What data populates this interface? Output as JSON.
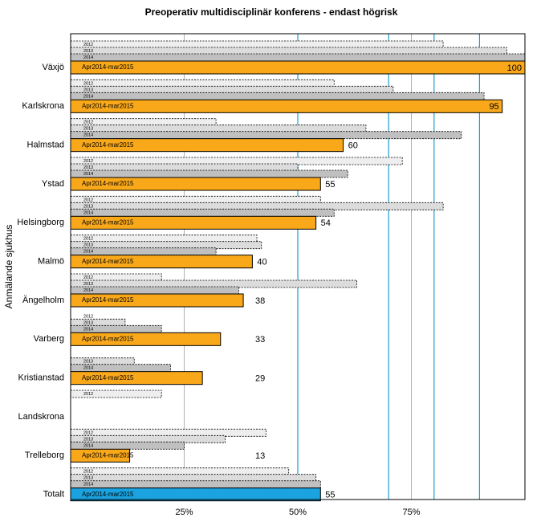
{
  "chart_data": {
    "type": "bar",
    "orientation": "horizontal",
    "title": "Preoperativ multidisciplinär konferens - endast högrisk",
    "y_label": "Anmälande sjukhus",
    "categories": [
      "Växjö",
      "Karlskrona",
      "Halmstad",
      "Ystad",
      "Helsingborg",
      "Malmö",
      "Ängelholm",
      "Varberg",
      "Kristianstad",
      "Landskrona",
      "Trelleborg",
      "Totalt"
    ],
    "series": [
      {
        "name": "2012",
        "color": "#eeeeee",
        "values": [
          82,
          58,
          32,
          73,
          55,
          41,
          20,
          0,
          null,
          20,
          43,
          48
        ]
      },
      {
        "name": "2013",
        "color": "#dcdcdc",
        "values": [
          96,
          71,
          65,
          50,
          82,
          42,
          63,
          12,
          14,
          null,
          34,
          54
        ]
      },
      {
        "name": "2014",
        "color": "#c0c0c0",
        "values": [
          100,
          91,
          86,
          61,
          58,
          32,
          37,
          20,
          22,
          null,
          25,
          55
        ]
      },
      {
        "name": "Apr2014-mar2015",
        "color": "#f9a81a",
        "colors": [
          "#f9a81a",
          "#f9a81a",
          "#f9a81a",
          "#f9a81a",
          "#f9a81a",
          "#f9a81a",
          "#f9a81a",
          "#f9a81a",
          "#f9a81a",
          "#f9a81a",
          "#f9a81a",
          "#1aa3e0"
        ],
        "values": [
          100,
          95,
          60,
          55,
          54,
          40,
          38,
          33,
          29,
          null,
          13,
          55
        ]
      }
    ],
    "xlim": [
      0,
      100
    ],
    "xticks": [
      {
        "value": 25,
        "label": "25%"
      },
      {
        "value": 50,
        "label": "50%"
      },
      {
        "value": 75,
        "label": "75%"
      }
    ],
    "grid": true,
    "reference_lines": [
      50,
      70,
      80,
      90
    ],
    "reference_color": "#1f9ecf"
  }
}
